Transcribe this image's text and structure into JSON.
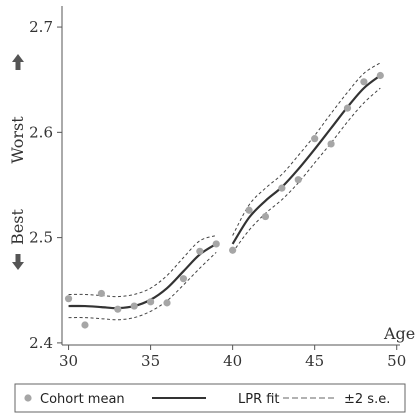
{
  "chart_data": {
    "type": "line",
    "xlabel": "Age",
    "ylabel_low": "Best",
    "ylabel_high": "Worst",
    "xlim": [
      29.6,
      50.2
    ],
    "ylim": [
      2.398,
      2.72
    ],
    "x_ticks": [
      30,
      35,
      40,
      45,
      50
    ],
    "y_ticks": [
      2.4,
      2.5,
      2.6,
      2.7
    ],
    "grid": false,
    "legend": {
      "placement": "bottom",
      "items": [
        {
          "label": "Cohort mean",
          "kind": "marker"
        },
        {
          "label": "LPR fit",
          "kind": "solid-line"
        },
        {
          "label": "±2 s.e.",
          "kind": "dashed-line"
        }
      ]
    },
    "colors": {
      "marker": "#a6a6a6",
      "fit": "#333333",
      "band": "#444444"
    },
    "series": [
      {
        "name": "Cohort mean",
        "x": [
          30,
          31,
          32,
          33,
          34,
          35,
          36,
          37,
          38,
          39,
          40,
          41,
          42,
          43,
          44,
          45,
          46,
          47,
          48,
          49
        ],
        "y": [
          2.442,
          2.417,
          2.447,
          2.432,
          2.435,
          2.439,
          2.438,
          2.461,
          2.487,
          2.494,
          2.488,
          2.526,
          2.52,
          2.547,
          2.555,
          2.594,
          2.589,
          2.623,
          2.648,
          2.654
        ]
      },
      {
        "name": "LPR fit",
        "segments": [
          {
            "x": [
              30,
              31,
              32,
              33,
              34,
              35,
              36,
              37,
              38,
              39
            ],
            "y": [
              2.435,
              2.435,
              2.434,
              2.433,
              2.435,
              2.441,
              2.452,
              2.468,
              2.484,
              2.494
            ]
          },
          {
            "x": [
              40,
              41,
              42,
              43,
              44,
              45,
              46,
              47,
              48,
              49
            ],
            "y": [
              2.494,
              2.519,
              2.535,
              2.548,
              2.565,
              2.584,
              2.604,
              2.624,
              2.642,
              2.654
            ]
          }
        ]
      },
      {
        "name": "±2 s.e. upper",
        "segments": [
          {
            "x": [
              30,
              31,
              32,
              33,
              34,
              35,
              36,
              37,
              38,
              39
            ],
            "y": [
              2.446,
              2.446,
              2.445,
              2.444,
              2.446,
              2.452,
              2.464,
              2.481,
              2.497,
              2.502
            ]
          },
          {
            "x": [
              40,
              41,
              42,
              43,
              44,
              45,
              46,
              47,
              48,
              49
            ],
            "y": [
              2.502,
              2.531,
              2.547,
              2.56,
              2.578,
              2.597,
              2.618,
              2.638,
              2.656,
              2.666
            ]
          }
        ]
      },
      {
        "name": "±2 s.e. lower",
        "segments": [
          {
            "x": [
              30,
              31,
              32,
              33,
              34,
              35,
              36,
              37,
              38,
              39
            ],
            "y": [
              2.424,
              2.424,
              2.423,
              2.422,
              2.424,
              2.43,
              2.44,
              2.455,
              2.471,
              2.486
            ]
          },
          {
            "x": [
              40,
              41,
              42,
              43,
              44,
              45,
              46,
              47,
              48,
              49
            ],
            "y": [
              2.486,
              2.507,
              2.523,
              2.536,
              2.552,
              2.571,
              2.59,
              2.61,
              2.628,
              2.642
            ]
          }
        ]
      }
    ]
  }
}
